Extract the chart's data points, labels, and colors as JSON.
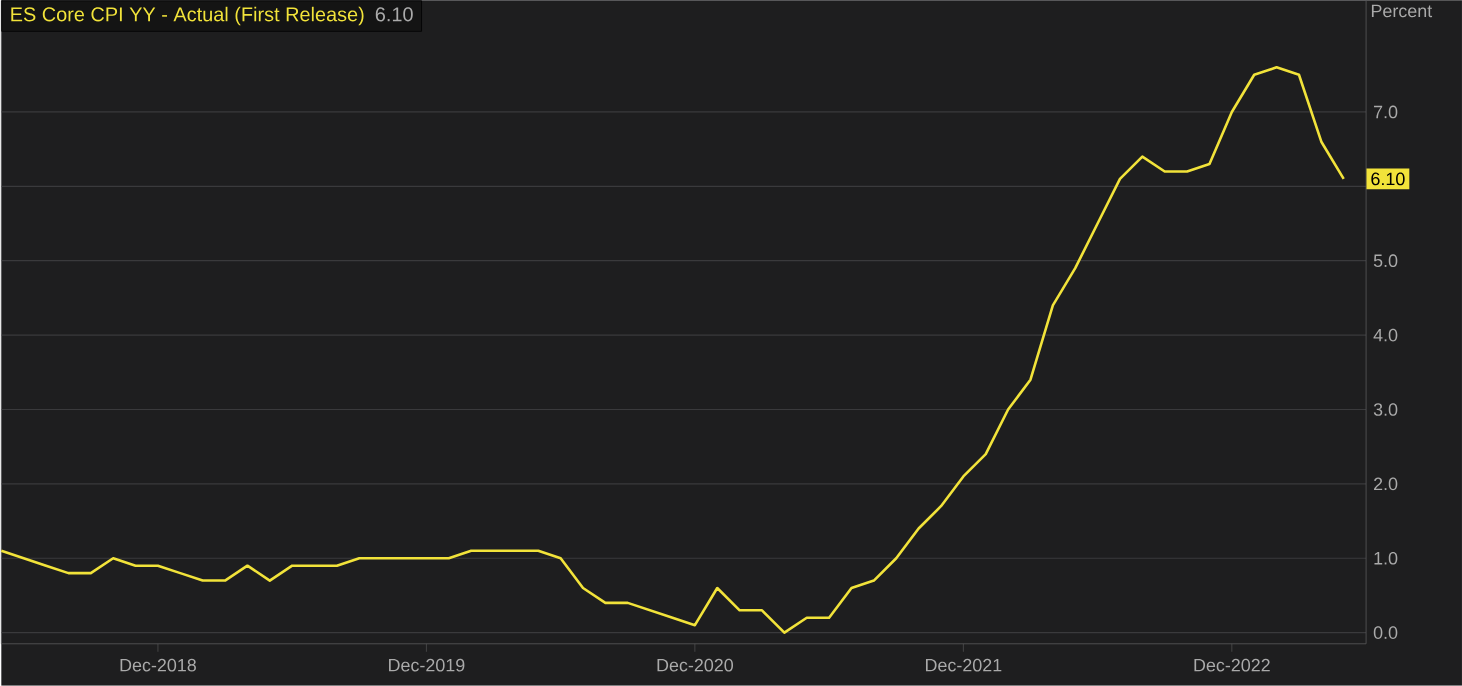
{
  "chart_data": {
    "type": "line",
    "ylabel": "Percent",
    "x": [
      "2018-05",
      "2018-06",
      "2018-07",
      "2018-08",
      "2018-09",
      "2018-10",
      "2018-11",
      "2018-12",
      "2019-01",
      "2019-02",
      "2019-03",
      "2019-04",
      "2019-05",
      "2019-06",
      "2019-07",
      "2019-08",
      "2019-09",
      "2019-10",
      "2019-11",
      "2019-12",
      "2020-01",
      "2020-02",
      "2020-03",
      "2020-04",
      "2020-05",
      "2020-06",
      "2020-07",
      "2020-08",
      "2020-09",
      "2020-10",
      "2020-11",
      "2020-12",
      "2021-01",
      "2021-02",
      "2021-03",
      "2021-04",
      "2021-05",
      "2021-06",
      "2021-07",
      "2021-08",
      "2021-09",
      "2021-10",
      "2021-11",
      "2021-12",
      "2022-01",
      "2022-02",
      "2022-03",
      "2022-04",
      "2022-05",
      "2022-06",
      "2022-07",
      "2022-08",
      "2022-09",
      "2022-10",
      "2022-11",
      "2022-12",
      "2023-01",
      "2023-02",
      "2023-03",
      "2023-04",
      "2023-05"
    ],
    "series": [
      {
        "name": "ES Core CPI YY - Actual (First Release)",
        "color": "#f2e33a",
        "values": [
          1.1,
          1.0,
          0.9,
          0.8,
          0.8,
          1.0,
          0.9,
          0.9,
          0.8,
          0.7,
          0.7,
          0.9,
          0.7,
          0.9,
          0.9,
          0.9,
          1.0,
          1.0,
          1.0,
          1.0,
          1.0,
          1.1,
          1.1,
          1.1,
          1.1,
          1.0,
          0.6,
          0.4,
          0.4,
          0.3,
          0.2,
          0.1,
          0.6,
          0.3,
          0.3,
          0.0,
          0.2,
          0.2,
          0.6,
          0.7,
          1.0,
          1.4,
          1.7,
          2.1,
          2.4,
          3.0,
          3.4,
          4.4,
          4.9,
          5.5,
          6.1,
          6.4,
          6.2,
          6.2,
          6.3,
          7.0,
          7.5,
          7.6,
          7.5,
          6.6,
          6.1
        ],
        "value_labels": [
          null,
          null,
          null,
          null,
          null,
          null,
          null,
          null,
          null,
          null,
          null,
          null,
          null,
          null,
          null,
          null,
          null,
          null,
          null,
          null,
          null,
          null,
          null,
          null,
          null,
          null,
          null,
          null,
          null,
          null,
          null,
          null,
          null,
          null,
          null,
          null,
          null,
          null,
          null,
          null,
          null,
          null,
          null,
          null,
          null,
          null,
          null,
          null,
          null,
          null,
          null,
          null,
          null,
          null,
          null,
          null,
          null,
          null,
          null,
          null,
          "6.10"
        ]
      }
    ],
    "annotations": [
      "6.10"
    ],
    "xlim": [
      "2018-05",
      "2023-06"
    ],
    "xticks": [
      {
        "value": "2018-12",
        "label": "Dec-2018"
      },
      {
        "value": "2019-12",
        "label": "Dec-2019"
      },
      {
        "value": "2020-12",
        "label": "Dec-2020"
      },
      {
        "value": "2021-12",
        "label": "Dec-2021"
      },
      {
        "value": "2022-12",
        "label": "Dec-2022"
      }
    ],
    "ylim": [
      -0.15,
      8.5
    ],
    "yticks": [
      {
        "value": 0,
        "label": "0.0"
      },
      {
        "value": 1,
        "label": "1.0"
      },
      {
        "value": 2,
        "label": "2.0"
      },
      {
        "value": 3,
        "label": "3.0"
      },
      {
        "value": 4,
        "label": "4.0"
      },
      {
        "value": 5,
        "label": "5.0"
      },
      {
        "value": 6,
        "label": null
      },
      {
        "value": 7,
        "label": "7.0"
      }
    ],
    "grid": "y",
    "legend": "top left",
    "marker": "none",
    "line_style": "solid"
  }
}
